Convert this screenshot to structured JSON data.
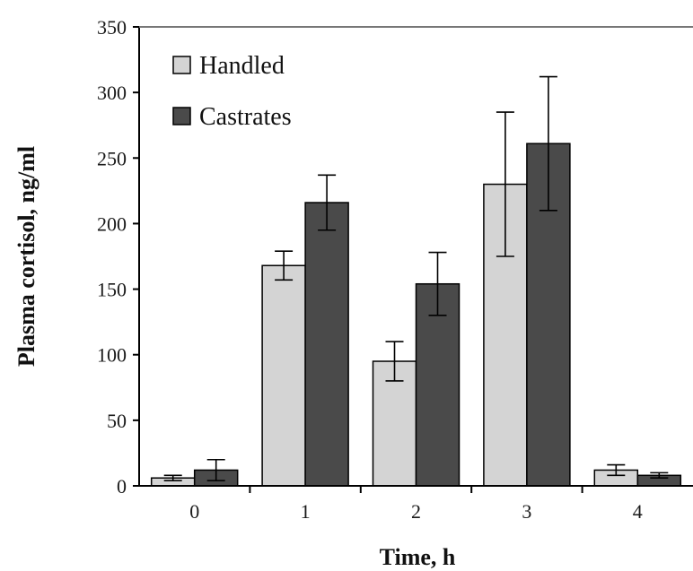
{
  "chart_data": {
    "type": "bar",
    "title": "",
    "xlabel": "Time, h",
    "ylabel": "Plasma cortisol, ng/ml",
    "categories": [
      "0",
      "1",
      "2",
      "3",
      "4"
    ],
    "ylim": [
      0,
      350
    ],
    "yticks": [
      "0",
      "50",
      "100",
      "150",
      "200",
      "250",
      "300",
      "350"
    ],
    "series": [
      {
        "name": "Handled",
        "color": "#d4d4d4",
        "values": [
          6,
          168,
          95,
          230,
          12
        ],
        "errors": [
          2,
          11,
          15,
          55,
          4
        ]
      },
      {
        "name": "Castrates",
        "color": "#4a4a4a",
        "values": [
          12,
          216,
          154,
          261,
          8
        ],
        "errors": [
          8,
          21,
          24,
          51,
          2
        ]
      }
    ],
    "legend": "top-left",
    "grid": false
  }
}
